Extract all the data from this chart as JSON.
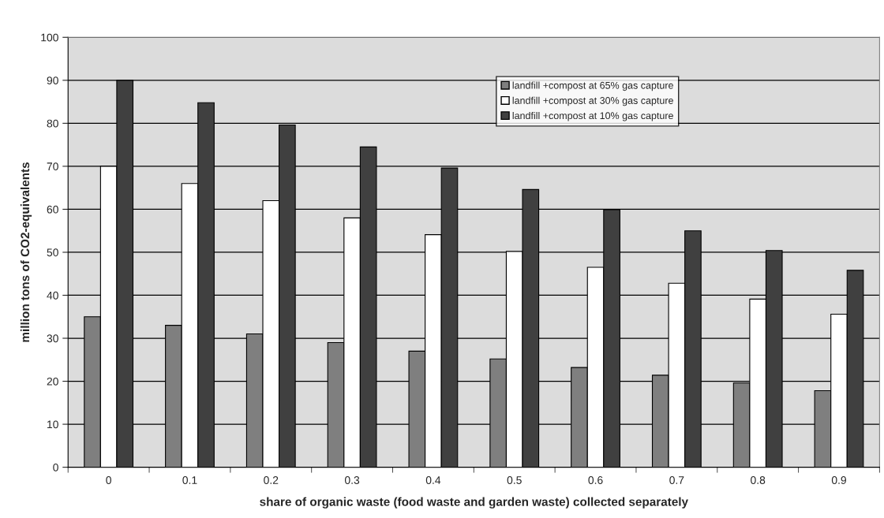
{
  "chart_data": {
    "type": "bar",
    "xlabel": "share of organic waste (food waste and garden waste) collected separately",
    "ylabel": "million tons of CO2-equivalents",
    "categories": [
      "0",
      "0.1",
      "0.2",
      "0.3",
      "0.4",
      "0.5",
      "0.6",
      "0.7",
      "0.8",
      "0.9"
    ],
    "series": [
      {
        "name": "landfill +compost at 65% gas capture",
        "color": "#7f7f7f",
        "values": [
          35,
          33,
          31,
          29,
          27,
          25.2,
          23.2,
          21.4,
          19.6,
          17.8
        ]
      },
      {
        "name": "landfill +compost at 30% gas capture",
        "color": "#ffffff",
        "values": [
          70,
          66,
          62,
          58,
          54.1,
          50.2,
          46.5,
          42.8,
          39.1,
          35.6
        ]
      },
      {
        "name": "landfill +compost at 10% gas capture",
        "color": "#404040",
        "values": [
          90,
          84.8,
          79.6,
          74.5,
          69.6,
          64.6,
          59.9,
          55,
          50.4,
          45.8
        ]
      }
    ],
    "ylim": [
      0,
      100
    ],
    "yticks": [
      0,
      10,
      20,
      30,
      40,
      50,
      60,
      70,
      80,
      90,
      100
    ],
    "grid": "y",
    "legend": "top"
  }
}
